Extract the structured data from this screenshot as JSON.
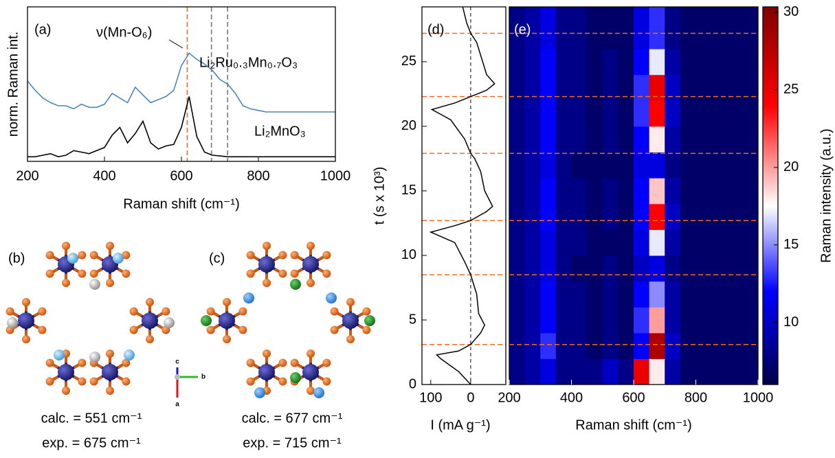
{
  "chart_data": [
    {
      "type": "line",
      "panel_label": "(a)",
      "xlabel": "Raman shift (cm⁻¹)",
      "ylabel": "norm. Raman int.",
      "annotation": "ν(Mn-O₆)",
      "x": [
        200,
        220,
        240,
        260,
        280,
        300,
        320,
        340,
        360,
        380,
        400,
        420,
        440,
        460,
        480,
        500,
        520,
        540,
        560,
        580,
        600,
        620,
        640,
        660,
        680,
        700,
        720,
        740,
        760,
        780,
        800,
        820,
        840,
        860,
        880,
        900,
        920,
        940,
        960,
        980,
        1000
      ],
      "series": [
        {
          "name": "Li₂Ru₀.₃Mn₀.₇O₃",
          "color": "#4a87b5",
          "values": [
            5.2,
            4.6,
            4.1,
            3.8,
            3.6,
            3.6,
            3.4,
            3.7,
            3.5,
            3.5,
            3.7,
            4.4,
            4.1,
            3.8,
            4.8,
            4.3,
            3.8,
            4.0,
            4.2,
            4.6,
            6.2,
            7.0,
            6.6,
            6.3,
            5.9,
            5.3,
            5.0,
            4.4,
            3.6,
            3.4,
            3.3,
            3.2,
            3.2,
            3.2,
            3.2,
            3.2,
            3.2,
            3.2,
            3.2,
            3.2,
            3.2
          ]
        },
        {
          "name": "Li₂MnO₃",
          "color": "#000000",
          "values": [
            0.3,
            0.3,
            0.4,
            0.5,
            0.3,
            0.4,
            0.7,
            0.6,
            0.5,
            0.7,
            0.9,
            1.7,
            2.2,
            1.2,
            1.8,
            2.6,
            1.2,
            0.8,
            1.0,
            1.1,
            2.2,
            4.2,
            1.6,
            0.6,
            0.4,
            0.35,
            0.3,
            0.3,
            0.3,
            0.3,
            0.3,
            0.3,
            0.3,
            0.3,
            0.3,
            0.3,
            0.3,
            0.3,
            0.3,
            0.3,
            0.3
          ]
        }
      ],
      "xlim": [
        200,
        1000
      ],
      "ylim": [
        0,
        10
      ],
      "xticks": [
        200,
        400,
        600,
        800,
        1000
      ],
      "vlines": [
        {
          "x": 615,
          "color": "#f26b21"
        },
        {
          "x": 678,
          "color": "#777777"
        },
        {
          "x": 720,
          "color": "#777777"
        }
      ]
    },
    {
      "type": "line",
      "panel_label": "(d)",
      "xlabel": "I (mA g⁻¹)",
      "ylabel": "t (s x 10³)",
      "x": [
        0,
        30,
        75,
        85,
        30,
        0,
        -25,
        -35,
        -20,
        -15,
        -5,
        0,
        15,
        40,
        100,
        40,
        0,
        -40,
        -55,
        -35,
        -25,
        -10,
        0,
        15,
        50,
        97,
        40,
        0,
        -40,
        -60,
        -40,
        -25,
        -15,
        0,
        10,
        20
      ],
      "series": [
        {
          "color": "#000000",
          "values": [
            0,
            1,
            2,
            2.3,
            2.6,
            3.1,
            4,
            4.6,
            5.5,
            7,
            8,
            8.5,
            9.5,
            11,
            11.8,
            12.3,
            12.7,
            13.4,
            13.8,
            15,
            16.5,
            17.5,
            17.9,
            19,
            20.5,
            21.3,
            21.8,
            22.3,
            22.8,
            23.3,
            24,
            25.5,
            26.5,
            27.2,
            28,
            29.25
          ]
        }
      ],
      "xlim": [
        122,
        -88
      ],
      "ylim": [
        0,
        29.25
      ],
      "xticks": [
        100,
        0
      ],
      "yticks": [
        0,
        5,
        10,
        15,
        20,
        25
      ],
      "zero_line": true,
      "hlines": [
        3.1,
        8.5,
        12.7,
        17.9,
        22.3,
        27.2
      ],
      "hline_color": "#f26b21"
    },
    {
      "type": "heatmap",
      "panel_label": "(e)",
      "xlabel": "Raman shift (cm⁻¹)",
      "colorbar_label": "Raman intensity (a.u.)",
      "x_edges": [
        200,
        250,
        300,
        350,
        400,
        450,
        500,
        550,
        600,
        650,
        700,
        750,
        800,
        850,
        900,
        950,
        1000
      ],
      "y_edges": [
        0,
        2,
        4,
        6,
        8,
        10,
        12,
        14,
        16,
        18,
        20,
        22,
        24,
        26,
        28,
        29.25
      ],
      "z": [
        [
          8,
          9,
          11,
          8,
          8,
          8,
          10,
          8,
          25,
          18,
          9,
          7,
          7,
          7,
          7,
          7
        ],
        [
          8,
          9,
          13,
          8,
          8,
          7,
          8,
          7,
          12,
          28,
          10,
          7,
          7,
          7,
          7,
          7
        ],
        [
          8,
          9,
          12,
          8,
          8,
          7,
          8,
          7,
          13,
          20,
          9,
          7,
          7,
          7,
          7,
          7
        ],
        [
          8,
          9,
          12,
          8,
          8,
          7,
          8,
          7,
          12,
          15,
          9,
          7,
          7,
          7,
          7,
          7
        ],
        [
          8,
          9,
          11,
          8,
          7,
          7,
          8,
          7,
          10,
          11,
          8,
          7,
          7,
          7,
          7,
          7
        ],
        [
          8,
          9,
          11,
          8,
          8,
          7,
          7,
          7,
          11,
          17,
          9,
          7,
          7,
          7,
          7,
          7
        ],
        [
          8,
          9,
          12,
          8,
          8,
          7,
          8,
          7,
          12,
          24,
          10,
          7,
          7,
          7,
          7,
          7
        ],
        [
          8,
          9,
          12,
          8,
          8,
          7,
          8,
          7,
          12,
          19,
          9,
          7,
          7,
          7,
          7,
          7
        ],
        [
          8,
          9,
          11,
          8,
          7,
          7,
          7,
          7,
          11,
          11,
          8,
          7,
          7,
          7,
          7,
          7
        ],
        [
          8,
          9,
          12,
          8,
          8,
          7,
          8,
          7,
          12,
          18,
          9,
          7,
          7,
          7,
          7,
          7
        ],
        [
          8,
          9,
          12,
          8,
          8,
          7,
          8,
          7,
          13,
          24,
          10,
          7,
          7,
          7,
          7,
          7
        ],
        [
          8,
          9,
          12,
          8,
          8,
          7,
          8,
          7,
          13,
          25,
          10,
          7,
          7,
          7,
          7,
          7
        ],
        [
          8,
          9,
          12,
          8,
          8,
          7,
          8,
          7,
          12,
          17,
          9,
          7,
          7,
          7,
          7,
          7
        ],
        [
          8,
          9,
          11,
          8,
          8,
          7,
          7,
          7,
          11,
          13,
          8,
          7,
          7,
          7,
          7,
          7
        ],
        [
          8,
          9,
          11,
          8,
          8,
          7,
          7,
          7,
          11,
          13,
          8,
          7,
          7,
          7,
          7,
          7
        ]
      ],
      "xlim": [
        200,
        1000
      ],
      "ylim": [
        0,
        29.25
      ],
      "xticks": [
        200,
        400,
        600,
        800,
        1000
      ],
      "zlim": [
        6,
        30.35
      ],
      "zticks": [
        10,
        15,
        20,
        25,
        30
      ],
      "colorscale": [
        {
          "value": 6,
          "color": "#00004a"
        },
        {
          "value": 12,
          "color": "#0000ff"
        },
        {
          "value": 17.5,
          "color": "#ffffff"
        },
        {
          "value": 24,
          "color": "#ff0000"
        },
        {
          "value": 30.35,
          "color": "#800000"
        }
      ],
      "hlines": [
        3.1,
        8.5,
        12.7,
        17.9,
        22.3,
        27.2
      ],
      "hline_color": "#f26b21"
    }
  ],
  "structures": [
    {
      "label": "(b)",
      "calc": "calc. = 551 cm⁻¹",
      "exp": "exp. = 675 cm⁻¹"
    },
    {
      "label": "(c)",
      "calc": "calc. = 677 cm⁻¹",
      "exp": "exp. = 715 cm⁻¹"
    }
  ],
  "axes_labels": [
    "c",
    "b",
    "a"
  ]
}
